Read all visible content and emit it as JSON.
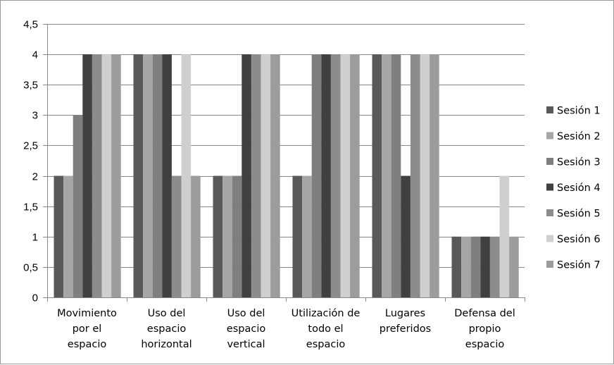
{
  "chart_data": {
    "type": "bar",
    "categories": [
      [
        "Movimiento",
        "por el",
        "espacio"
      ],
      [
        "Uso del",
        "espacio",
        "horizontal"
      ],
      [
        "Uso del",
        "espacio",
        "vertical"
      ],
      [
        "Utilización de",
        "todo el",
        "espacio"
      ],
      [
        "Lugares",
        "preferidos"
      ],
      [
        "Defensa del",
        "propio",
        "espacio"
      ]
    ],
    "series": [
      {
        "name": "Sesión 1",
        "color": "#595959",
        "values": [
          2,
          4,
          2,
          2,
          4,
          1
        ]
      },
      {
        "name": "Sesión 2",
        "color": "#a6a6a6",
        "values": [
          2,
          4,
          2,
          2,
          4,
          1
        ]
      },
      {
        "name": "Sesión 3",
        "color": "#7f7f7f",
        "values": [
          3,
          4,
          2,
          4,
          4,
          1
        ]
      },
      {
        "name": "Sesión 4",
        "color": "#404040",
        "values": [
          4,
          4,
          4,
          4,
          2,
          1
        ]
      },
      {
        "name": "Sesión 5",
        "color": "#8c8c8c",
        "values": [
          4,
          2,
          4,
          4,
          4,
          1
        ]
      },
      {
        "name": "Sesión 6",
        "color": "#cfcfcf",
        "values": [
          4,
          4,
          4,
          4,
          4,
          2
        ]
      },
      {
        "name": "Sesión 7",
        "color": "#9c9c9c",
        "values": [
          4,
          2,
          4,
          4,
          4,
          1
        ]
      }
    ],
    "ylim": [
      0,
      4.5
    ],
    "yticks": [
      "0",
      "0,5",
      "1",
      "1,5",
      "2",
      "2,5",
      "3",
      "3,5",
      "4",
      "4,5"
    ],
    "grid": true,
    "legend_position": "right",
    "title": "",
    "xlabel": "",
    "ylabel": ""
  }
}
